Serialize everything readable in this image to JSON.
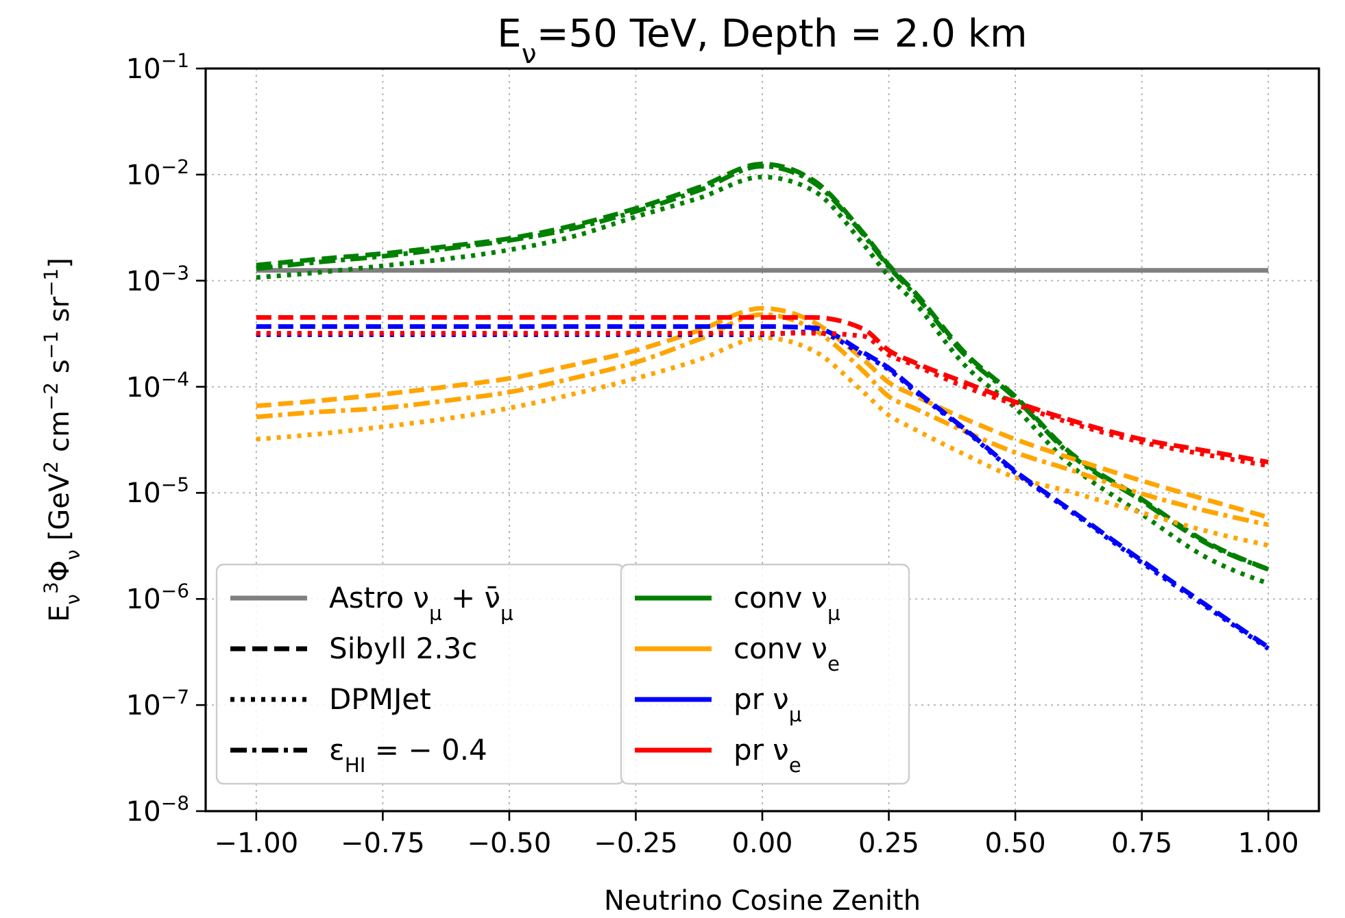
{
  "chart_data": {
    "type": "line",
    "title": "E$_{ν}$=50 TeV, Depth = 2.0 km",
    "xlabel": "Neutrino Cosine Zenith",
    "ylabel": "E$_{ν}$$^{3}$Φ$_{ν}$ [GeV$^{2}$ cm$^{−2}$ s$^{−1}$ sr$^{−1}$]",
    "x": [
      -1,
      -0.875,
      -0.75,
      -0.625,
      -0.5,
      -0.375,
      -0.25,
      -0.125,
      0,
      0.1,
      0.2,
      0.25,
      0.3,
      0.4,
      0.5,
      0.6,
      0.75,
      0.875,
      1
    ],
    "series": [
      {
        "name": "Astro ν$_{μ}$ + ν̄$_{μ}$",
        "color": "#808080",
        "line_style": "solid",
        "values": [
          0.00125,
          0.00125,
          0.00125,
          0.00125,
          0.00125,
          0.00125,
          0.00125,
          0.00125,
          0.00125,
          0.00125,
          0.00125,
          0.00125,
          0.00125,
          0.00125,
          0.00125,
          0.00125,
          0.00125,
          0.00125,
          0.00125
        ]
      },
      {
        "name": "Sibyll 2.3c",
        "color": "#000000",
        "line_style": "dashed",
        "values": [
          null,
          null,
          null,
          null,
          null,
          null,
          null,
          null,
          null,
          null,
          null,
          null,
          null,
          null,
          null,
          null,
          null,
          null,
          null
        ]
      },
      {
        "name": "DPMJet",
        "color": "#000000",
        "line_style": "dotted",
        "values": [
          null,
          null,
          null,
          null,
          null,
          null,
          null,
          null,
          null,
          null,
          null,
          null,
          null,
          null,
          null,
          null,
          null,
          null,
          null
        ]
      },
      {
        "name": "ε$_{HI}$ = − 0.4",
        "color": "#000000",
        "line_style": "dashdot",
        "values": [
          null,
          null,
          null,
          null,
          null,
          null,
          null,
          null,
          null,
          null,
          null,
          null,
          null,
          null,
          null,
          null,
          null,
          null,
          null
        ]
      },
      {
        "name": "conv ν$_{μ}$",
        "color": "#008000",
        "line_style": "solid",
        "values": [
          null,
          null,
          null,
          null,
          null,
          null,
          null,
          null,
          null,
          null,
          null,
          null,
          null,
          null,
          null,
          null,
          null,
          null,
          null
        ]
      },
      {
        "name": "conv ν$_{e}$",
        "color": "#ffa500",
        "line_style": "solid",
        "values": [
          null,
          null,
          null,
          null,
          null,
          null,
          null,
          null,
          null,
          null,
          null,
          null,
          null,
          null,
          null,
          null,
          null,
          null,
          null
        ]
      },
      {
        "name": "pr ν$_{μ}$",
        "color": "#0000ff",
        "line_style": "solid",
        "values": [
          null,
          null,
          null,
          null,
          null,
          null,
          null,
          null,
          null,
          null,
          null,
          null,
          null,
          null,
          null,
          null,
          null,
          null,
          null
        ]
      },
      {
        "name": "pr ν$_{e}$",
        "color": "#ff0000",
        "line_style": "solid",
        "values": [
          null,
          null,
          null,
          null,
          null,
          null,
          null,
          null,
          null,
          null,
          null,
          null,
          null,
          null,
          null,
          null,
          null,
          null,
          null
        ]
      },
      {
        "color": "#008000",
        "line_style": "dashed",
        "values": [
          0.0014,
          0.0016,
          0.0018,
          0.0021,
          0.0025,
          0.0033,
          0.0048,
          0.0076,
          0.0126,
          0.0089,
          0.0028,
          0.0014,
          0.00079,
          0.00021,
          8.1e-05,
          2.6e-05,
          8.7e-06,
          3.5e-06,
          1.9e-06
        ]
      },
      {
        "color": "#008000",
        "line_style": "dotted",
        "values": [
          0.00107,
          0.0012,
          0.00138,
          0.0016,
          0.00195,
          0.0026,
          0.004,
          0.006,
          0.0095,
          0.0071,
          0.0022,
          0.0011,
          0.00063,
          0.00016,
          6.3e-05,
          2e-05,
          6.3e-06,
          2.5e-06,
          1.4e-06
        ]
      },
      {
        "color": "#008000",
        "line_style": "dashdot",
        "values": [
          0.0013,
          0.0015,
          0.0017,
          0.002,
          0.0024,
          0.0031,
          0.0045,
          0.0071,
          0.012,
          0.0085,
          0.0027,
          0.00135,
          0.00075,
          0.0002,
          7.8e-05,
          2.5e-05,
          8.4e-06,
          3.4e-06,
          1.9e-06
        ]
      },
      {
        "color": "#ffa500",
        "line_style": "dashed",
        "values": [
          6.6e-05,
          7.4e-05,
          8.5e-05,
          0.0001,
          0.00012,
          0.00016,
          0.00022,
          0.00034,
          0.00055,
          0.00041,
          0.00018,
          0.00011,
          8.3e-05,
          5e-05,
          3.2e-05,
          2.2e-05,
          1.3e-05,
          8.7e-06,
          5.9e-06
        ]
      },
      {
        "color": "#ffa500",
        "line_style": "dotted",
        "values": [
          3.2e-05,
          3.6e-05,
          4.2e-05,
          5e-05,
          6.3e-05,
          8.5e-05,
          0.00012,
          0.00018,
          0.00029,
          0.00022,
          8.9e-05,
          5.4e-05,
          4e-05,
          2.3e-05,
          1.4e-05,
          1.05e-05,
          6.5e-06,
          4.4e-06,
          3.2e-06
        ]
      },
      {
        "color": "#ffa500",
        "line_style": "dashdot",
        "values": [
          5.2e-05,
          5.8e-05,
          6.3e-05,
          7.4e-05,
          8.9e-05,
          0.00012,
          0.00017,
          0.00028,
          0.00048,
          0.00035,
          0.00014,
          8.1e-05,
          6.3e-05,
          3.8e-05,
          2.4e-05,
          1.7e-05,
          9.8e-06,
          6.8e-06,
          5e-06
        ]
      },
      {
        "color": "#0000ff",
        "line_style": "dashed",
        "values": [
          0.00037,
          0.00037,
          0.00037,
          0.00037,
          0.00037,
          0.00037,
          0.00037,
          0.00037,
          0.00037,
          0.00036,
          0.00021,
          0.00015,
          9.5e-05,
          4e-05,
          1.6e-05,
          7.4e-06,
          2.3e-06,
          8.9e-07,
          3.5e-07
        ]
      },
      {
        "color": "#0000ff",
        "line_style": "dotted",
        "values": [
          0.00031,
          0.00031,
          0.00031,
          0.00031,
          0.00031,
          0.00031,
          0.00031,
          0.00031,
          0.00031,
          0.00033,
          0.0002,
          0.000145,
          9.2e-05,
          3.9e-05,
          1.55e-05,
          7.2e-06,
          2.2e-06,
          8.6e-07,
          3.4e-07
        ]
      },
      {
        "color": "#ff0000",
        "line_style": "dashed",
        "values": [
          0.00045,
          0.00045,
          0.00045,
          0.00045,
          0.00045,
          0.00045,
          0.00045,
          0.00045,
          0.00045,
          0.00045,
          0.00035,
          0.00022,
          0.00017,
          0.00011,
          7.2e-05,
          5e-05,
          3.2e-05,
          2.5e-05,
          1.95e-05
        ]
      },
      {
        "color": "#ff0000",
        "line_style": "dotted",
        "values": [
          0.00032,
          0.00032,
          0.00032,
          0.00032,
          0.00032,
          0.00032,
          0.00032,
          0.00032,
          0.00032,
          0.00032,
          0.0003,
          0.0002,
          0.00016,
          0.0001,
          6.8e-05,
          4.7e-05,
          3e-05,
          2.3e-05,
          1.8e-05
        ]
      }
    ],
    "xlim": [
      -1.1,
      1.1
    ],
    "xticks": [
      {
        "value": -1,
        "label": "−1.00"
      },
      {
        "value": -0.75,
        "label": "−0.75"
      },
      {
        "value": -0.5,
        "label": "−0.50"
      },
      {
        "value": -0.25,
        "label": "−0.25"
      },
      {
        "value": 0,
        "label": "0.00"
      },
      {
        "value": 0.25,
        "label": "0.25"
      },
      {
        "value": 0.5,
        "label": "0.50"
      },
      {
        "value": 0.75,
        "label": "0.75"
      },
      {
        "value": 1,
        "label": "1.00"
      }
    ],
    "ylim": [
      1e-08,
      0.1
    ],
    "yticks": [
      {
        "value": 1e-08,
        "label": "10$^{−8}$"
      },
      {
        "value": 1e-07,
        "label": "10$^{−7}$"
      },
      {
        "value": 1e-06,
        "label": "10$^{−6}$"
      },
      {
        "value": 1e-05,
        "label": "10$^{−5}$"
      },
      {
        "value": 0.0001,
        "label": "10$^{−4}$"
      },
      {
        "value": 0.001,
        "label": "10$^{−3}$"
      },
      {
        "value": 0.01,
        "label": "10$^{−2}$"
      },
      {
        "value": 0.1,
        "label": "10$^{−1}$"
      }
    ],
    "log": true,
    "grid": true,
    "legend": "bottom left",
    "marker": "none"
  }
}
